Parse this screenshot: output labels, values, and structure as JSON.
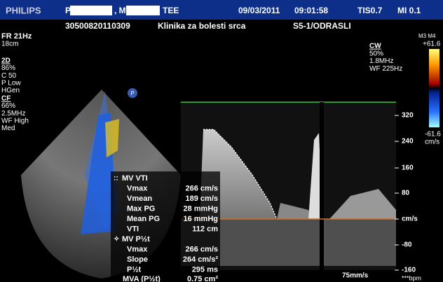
{
  "header": {
    "brand": "PHILIPS",
    "patient_first": "P",
    "patient_second": ", M",
    "patient_suffix": "TEE",
    "date": "09/03/2011",
    "time": "09:01:58",
    "tis": "TIS0.7",
    "mi": "MI 0.1",
    "id": "30500820110309",
    "institution": "Klinika za bolesti srca",
    "preset": "S5-1/ODRASLI"
  },
  "left_params": {
    "frame_rate": "FR 21Hz",
    "depth": "18cm",
    "mode_2d": {
      "label": "2D",
      "items": [
        "86%",
        "C 50",
        "P Low",
        "HGen"
      ]
    },
    "mode_cf": {
      "label": "CF",
      "items": [
        "66%",
        "2.5MHz",
        "WF High",
        "Med"
      ]
    }
  },
  "cw_params": {
    "label": "CW",
    "items": [
      "50%",
      "1.8MHz",
      "WF 225Hz"
    ]
  },
  "color_bar": {
    "modes": "M3 M4",
    "max": "+61.6",
    "min": "-61.6",
    "unit": "cm/s"
  },
  "probe_marker": "P",
  "velocity_scale": {
    "ticks": [
      "320",
      "240",
      "160",
      "80",
      "cm/s",
      "-80",
      "-160"
    ]
  },
  "sweep_speed": "75mm/s",
  "heart_rate": "***bpm",
  "measurements": {
    "sections": [
      {
        "title": "MV VTI",
        "rows": [
          [
            "Vmax",
            "266 cm/s"
          ],
          [
            "Vmean",
            "189 cm/s"
          ],
          [
            "Max PG",
            "28 mmHg"
          ],
          [
            "Mean PG",
            "16 mmHg"
          ],
          [
            "VTI",
            "112 cm"
          ]
        ]
      },
      {
        "title": "MV P½t",
        "rows": [
          [
            "Vmax",
            "266 cm/s"
          ],
          [
            "Slope",
            "264 cm/s²"
          ],
          [
            "P½t",
            "295 ms"
          ]
        ]
      }
    ],
    "result": {
      "label": "MVA (P½t)",
      "value": "0.75 cm²"
    }
  }
}
